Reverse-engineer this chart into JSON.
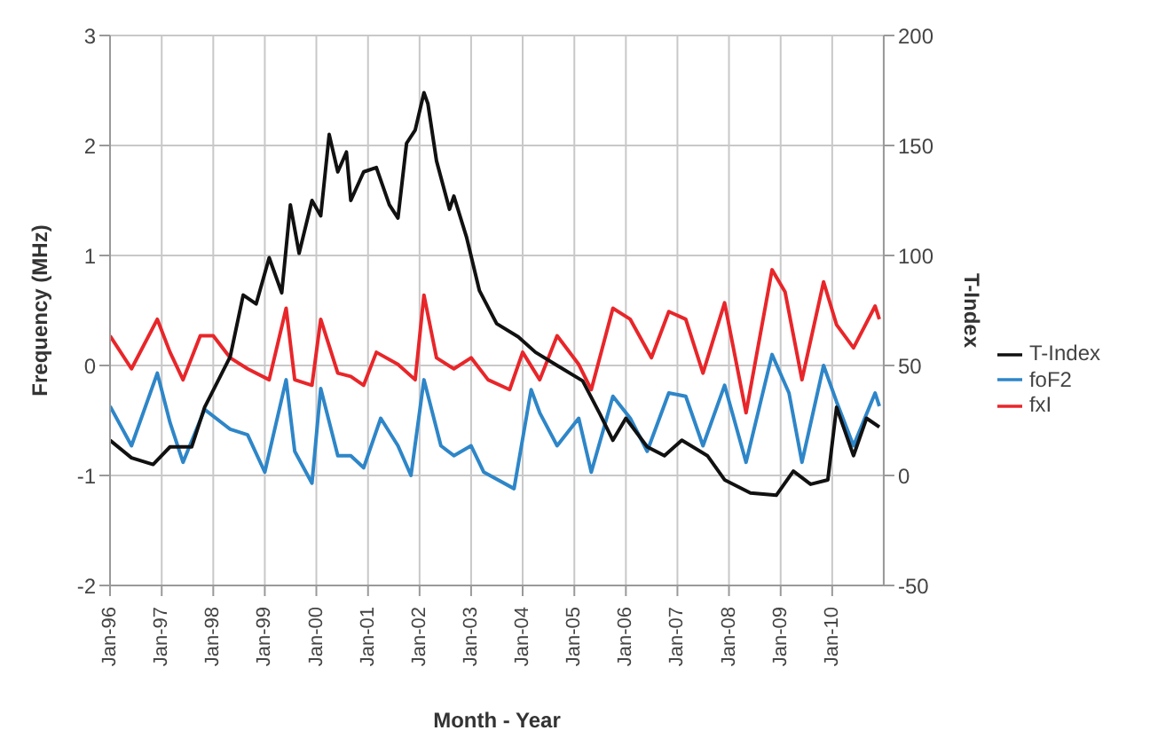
{
  "chart_data": {
    "type": "line",
    "xlabel": "Month - Year",
    "ylabel": "Frequency (MHz)",
    "y2label": "T-Index",
    "xlim": [
      "1996-01",
      "2011-01"
    ],
    "xticks": [
      {
        "value": "1996-01",
        "label": "Jan-96"
      },
      {
        "value": "1997-01",
        "label": "Jan-97"
      },
      {
        "value": "1998-01",
        "label": "Jan-98"
      },
      {
        "value": "1999-01",
        "label": "Jan-99"
      },
      {
        "value": "2000-01",
        "label": "Jan-00"
      },
      {
        "value": "2001-01",
        "label": "Jan-01"
      },
      {
        "value": "2002-01",
        "label": "Jan-02"
      },
      {
        "value": "2003-01",
        "label": "Jan-03"
      },
      {
        "value": "2004-01",
        "label": "Jan-04"
      },
      {
        "value": "2005-01",
        "label": "Jan-05"
      },
      {
        "value": "2006-01",
        "label": "Jan-06"
      },
      {
        "value": "2007-01",
        "label": "Jan-07"
      },
      {
        "value": "2008-01",
        "label": "Jan-08"
      },
      {
        "value": "2009-01",
        "label": "Jan-09"
      },
      {
        "value": "2010-01",
        "label": "Jan-10"
      }
    ],
    "ylim": [
      -2,
      3
    ],
    "yticks": [
      -2,
      -1,
      0,
      1,
      2,
      3
    ],
    "y2lim": [
      -50,
      200
    ],
    "y2ticks": [
      -50,
      0,
      50,
      100,
      150,
      200
    ],
    "grid": true,
    "legend": "right",
    "marker": "none",
    "line_style": "solid",
    "series": [
      {
        "name": "foF2",
        "color": "#2e86c8",
        "x": [
          "1996-01",
          "1996-06",
          "1996-12",
          "1997-03",
          "1997-06",
          "1997-11",
          "1998-05",
          "1998-09",
          "1999-01",
          "1999-06",
          "1999-08",
          "1999-12",
          "2000-02",
          "2000-06",
          "2000-09",
          "2000-12",
          "2001-04",
          "2001-08",
          "2001-11",
          "2002-02",
          "2002-06",
          "2002-09",
          "2003-01",
          "2003-04",
          "2003-11",
          "2004-03",
          "2004-05",
          "2004-09",
          "2005-02",
          "2005-05",
          "2005-10",
          "2006-02",
          "2006-06",
          "2006-11",
          "2007-03",
          "2007-07",
          "2007-12",
          "2008-05",
          "2008-11",
          "2009-03",
          "2009-06",
          "2009-11",
          "2010-02",
          "2010-06",
          "2010-11",
          "2010-12"
        ],
        "values": [
          -0.37,
          -0.73,
          -0.07,
          -0.52,
          -0.88,
          -0.4,
          -0.58,
          -0.63,
          -0.97,
          -0.13,
          -0.78,
          -1.07,
          -0.21,
          -0.82,
          -0.82,
          -0.93,
          -0.48,
          -0.73,
          -1.0,
          -0.13,
          -0.73,
          -0.82,
          -0.73,
          -0.97,
          -1.12,
          -0.22,
          -0.43,
          -0.73,
          -0.48,
          -0.97,
          -0.28,
          -0.48,
          -0.78,
          -0.25,
          -0.28,
          -0.73,
          -0.18,
          -0.88,
          0.1,
          -0.25,
          -0.88,
          0.0,
          -0.33,
          -0.73,
          -0.25,
          -0.37
        ]
      },
      {
        "name": "fxI",
        "color": "#e8262a",
        "x": [
          "1996-01",
          "1996-06",
          "1996-12",
          "1997-03",
          "1997-06",
          "1997-10",
          "1998-01",
          "1998-05",
          "1998-09",
          "1999-02",
          "1999-06",
          "1999-08",
          "1999-12",
          "2000-02",
          "2000-06",
          "2000-09",
          "2000-12",
          "2001-03",
          "2001-08",
          "2001-12",
          "2002-02",
          "2002-05",
          "2002-09",
          "2003-01",
          "2003-05",
          "2003-10",
          "2004-01",
          "2004-05",
          "2004-09",
          "2005-02",
          "2005-05",
          "2005-10",
          "2006-02",
          "2006-07",
          "2006-11",
          "2007-03",
          "2007-07",
          "2007-12",
          "2008-05",
          "2008-11",
          "2009-02",
          "2009-06",
          "2009-11",
          "2010-02",
          "2010-06",
          "2010-11",
          "2010-12"
        ],
        "values": [
          0.27,
          -0.03,
          0.42,
          0.12,
          -0.13,
          0.27,
          0.27,
          0.07,
          -0.03,
          -0.13,
          0.52,
          -0.13,
          -0.18,
          0.42,
          -0.07,
          -0.1,
          -0.18,
          0.12,
          0.01,
          -0.13,
          0.64,
          0.07,
          -0.03,
          0.07,
          -0.13,
          -0.22,
          0.12,
          -0.13,
          0.27,
          0.01,
          -0.22,
          0.52,
          0.42,
          0.07,
          0.49,
          0.42,
          -0.07,
          0.57,
          -0.43,
          0.87,
          0.67,
          -0.13,
          0.76,
          0.37,
          0.16,
          0.54,
          0.42
        ]
      },
      {
        "name": "T-Index",
        "color": "#111111",
        "axis": "y2",
        "x": [
          "1996-01",
          "1996-06",
          "1996-11",
          "1997-03",
          "1997-08",
          "1997-11",
          "1998-05",
          "1998-08",
          "1998-11",
          "1999-02",
          "1999-05",
          "1999-07",
          "1999-09",
          "1999-12",
          "2000-02",
          "2000-04",
          "2000-06",
          "2000-08",
          "2000-09",
          "2000-12",
          "2001-03",
          "2001-06",
          "2001-08",
          "2001-10",
          "2001-12",
          "2002-02",
          "2002-03",
          "2002-05",
          "2002-08",
          "2002-09",
          "2002-12",
          "2003-03",
          "2003-07",
          "2003-12",
          "2004-04",
          "2004-09",
          "2005-03",
          "2005-07",
          "2005-10",
          "2006-01",
          "2006-06",
          "2006-10",
          "2007-02",
          "2007-08",
          "2007-12",
          "2008-06",
          "2008-12",
          "2009-04",
          "2009-08",
          "2009-12",
          "2010-02",
          "2010-06",
          "2010-09",
          "2010-12"
        ],
        "values": [
          16,
          8,
          5,
          13,
          13,
          31,
          54,
          82,
          78,
          99,
          83,
          123,
          101,
          125,
          118,
          155,
          138,
          147,
          125,
          138,
          140,
          123,
          117,
          151,
          157,
          174,
          169,
          143,
          121,
          127,
          108,
          84,
          69,
          63,
          56,
          50,
          43,
          28,
          16,
          26,
          13,
          9,
          16,
          9,
          -2,
          -8,
          -9,
          2,
          -4,
          -2,
          31,
          9,
          26,
          22
        ]
      }
    ]
  }
}
